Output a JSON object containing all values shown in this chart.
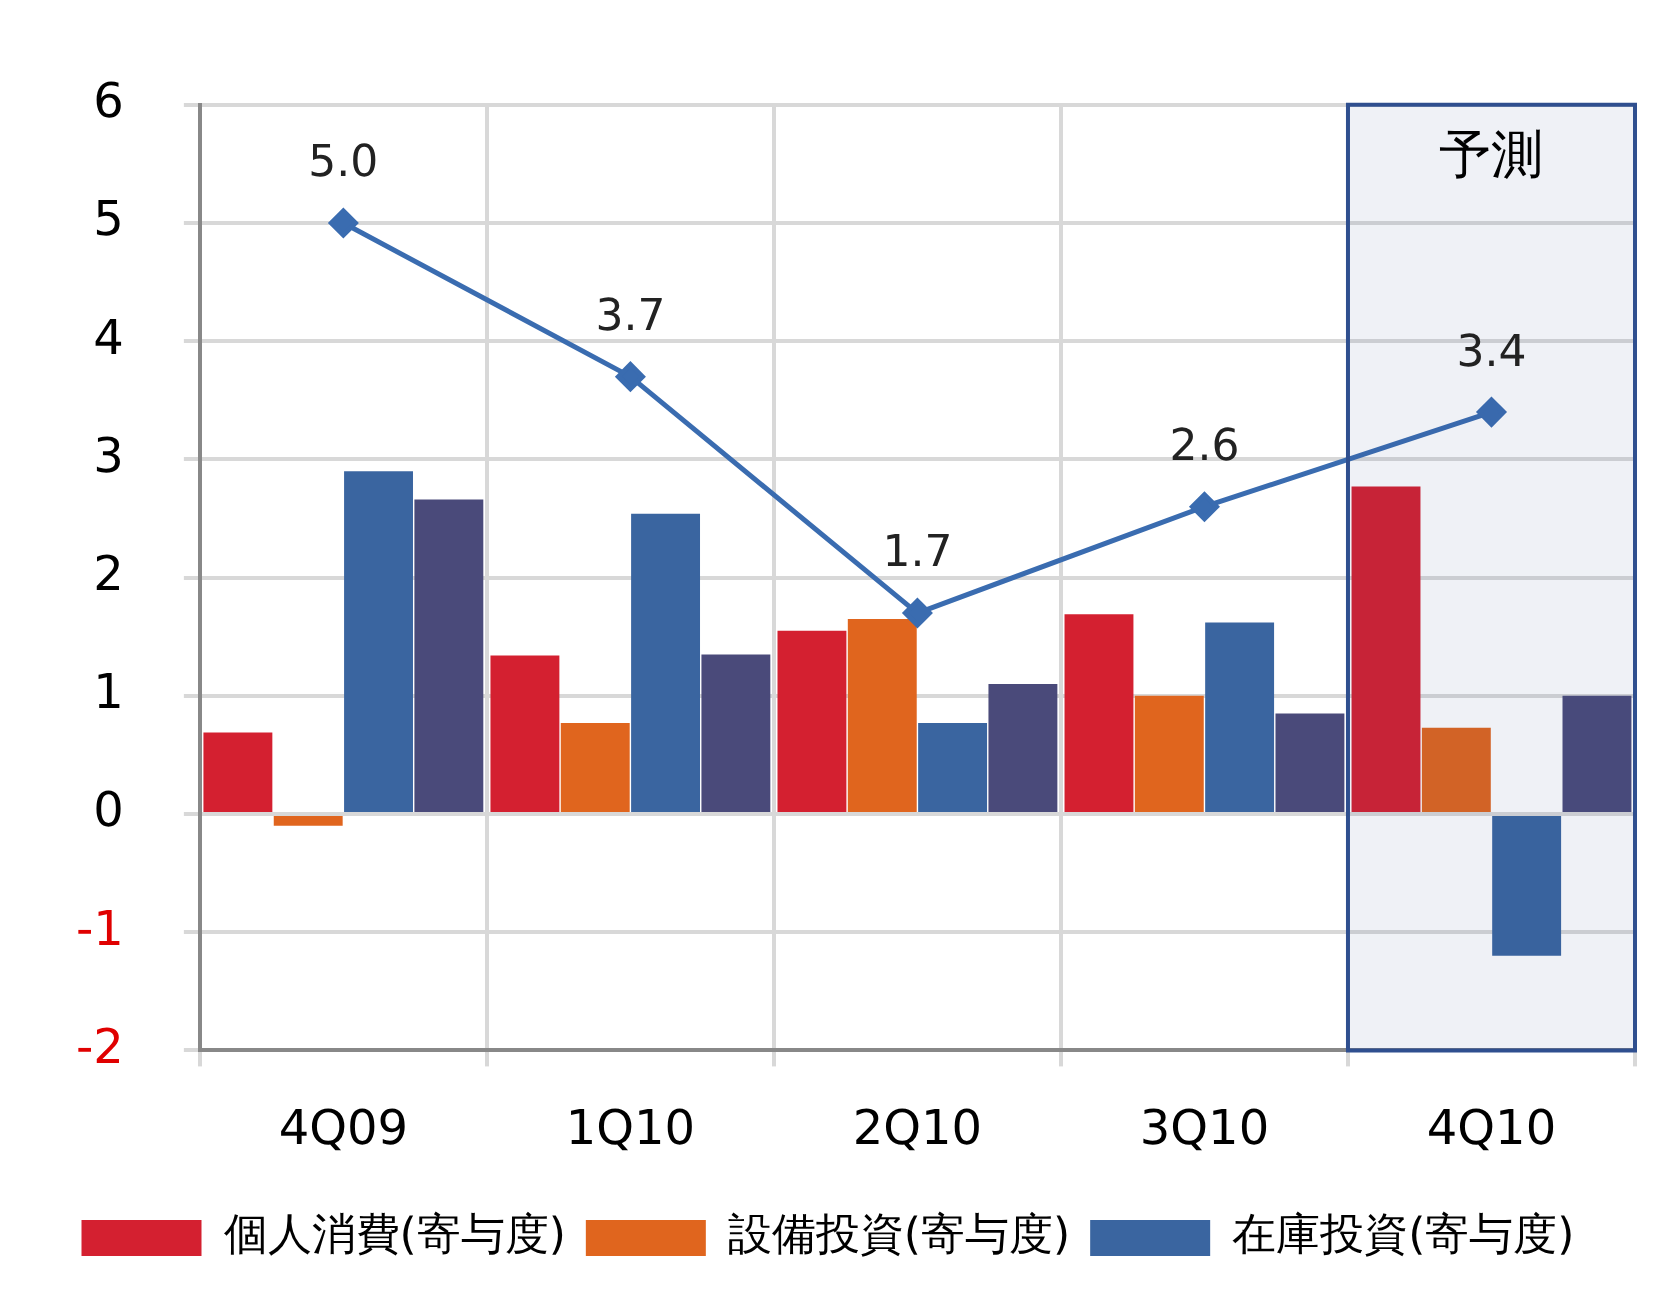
{
  "chart_data": {
    "type": "bar",
    "categories": [
      "4Q09",
      "1Q10",
      "2Q10",
      "3Q10",
      "4Q10"
    ],
    "series": [
      {
        "name": "個人消費(寄与度)",
        "color": "#d42030",
        "values": [
          0.69,
          1.34,
          1.55,
          1.69,
          2.77
        ]
      },
      {
        "name": "設備投資(寄与度)",
        "color": "#e0651e",
        "values": [
          -0.1,
          0.77,
          1.65,
          1.0,
          0.73
        ]
      },
      {
        "name": "在庫投資(寄与度)",
        "color": "#3a65a0",
        "values": [
          2.9,
          2.54,
          0.77,
          1.62,
          -1.2
        ]
      },
      {
        "color": "#4a4a7a",
        "values": [
          2.66,
          1.35,
          1.1,
          0.85,
          1.0
        ]
      },
      {
        "type": "line",
        "color": "#3a6cb0",
        "values": [
          5.0,
          3.7,
          1.7,
          2.6,
          3.4
        ],
        "value_labels": [
          "5.0",
          "3.7",
          "1.7",
          "2.6",
          "3.4"
        ]
      }
    ],
    "ylim": [
      -2,
      6
    ],
    "yticks": [
      -2,
      -1,
      0,
      1,
      2,
      3,
      4,
      5,
      6
    ],
    "grid": true,
    "legend": "bottom",
    "marker": "diamond",
    "bands": [
      {
        "axis": "x",
        "from": "4Q10",
        "to": "4Q10",
        "label": "予測",
        "color": "#2f4f8f"
      }
    ]
  }
}
